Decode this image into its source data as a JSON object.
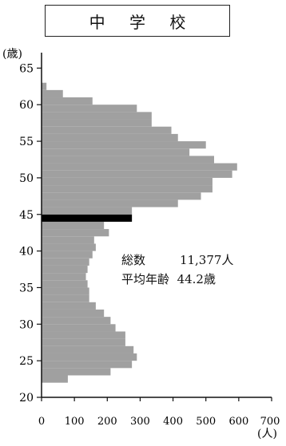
{
  "chart_data": {
    "type": "bar",
    "orientation": "horizontal",
    "title": "中 学 校",
    "ylabel": "(歳)",
    "xlabel": "(人)",
    "xlim": [
      0,
      700
    ],
    "ylim": [
      20,
      66
    ],
    "x_ticks": [
      "0",
      "100",
      "200",
      "300",
      "400",
      "500",
      "600",
      "700"
    ],
    "y_ticks": [
      "20",
      "25",
      "30",
      "35",
      "40",
      "45",
      "50",
      "55",
      "60",
      "65"
    ],
    "categories": [
      22,
      23,
      24,
      25,
      26,
      27,
      28,
      29,
      30,
      31,
      32,
      33,
      34,
      35,
      36,
      37,
      38,
      39,
      40,
      41,
      42,
      43,
      44,
      45,
      46,
      47,
      48,
      49,
      50,
      51,
      52,
      53,
      54,
      55,
      56,
      57,
      58,
      59,
      60,
      61,
      62,
      63
    ],
    "values": [
      80,
      210,
      275,
      290,
      280,
      255,
      255,
      225,
      210,
      190,
      165,
      145,
      145,
      140,
      135,
      140,
      145,
      155,
      165,
      160,
      205,
      190,
      275,
      275,
      415,
      485,
      520,
      520,
      580,
      595,
      525,
      450,
      500,
      415,
      395,
      335,
      335,
      290,
      155,
      65,
      15,
      0
    ],
    "highlight_category": 44,
    "colors": {
      "bar": "#a0a0a0",
      "highlight": "#000000"
    },
    "stats": {
      "total_label": "総数",
      "total_value": "11,377人",
      "average_label": "平均年齢",
      "average_value": "44.2歳"
    }
  }
}
